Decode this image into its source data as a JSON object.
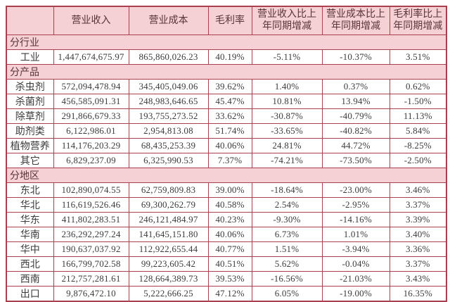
{
  "colors": {
    "header_bg": "#f5d0d4",
    "border": "#a8414d",
    "header_text": "#5a3338",
    "body_text": "#3c3c3c"
  },
  "table": {
    "columns": [
      "",
      "营业收入",
      "营业成本",
      "毛利率",
      "营业收入比上年同期增减",
      "营业成本比上年同期增减",
      "毛利率比上年同期增减"
    ],
    "sections": [
      {
        "label": "分行业",
        "rows": [
          {
            "label": "工业",
            "values": [
              "1,447,674,675.97",
              "865,860,026.23",
              "40.19%",
              "-5.11%",
              "-10.37%",
              "3.51%"
            ]
          }
        ]
      },
      {
        "label": "分产品",
        "rows": [
          {
            "label": "杀虫剂",
            "values": [
              "572,094,478.94",
              "345,405,049.06",
              "39.62%",
              "1.40%",
              "0.37%",
              "0.62%"
            ]
          },
          {
            "label": "杀菌剂",
            "values": [
              "456,585,091.31",
              "248,983,646.65",
              "45.47%",
              "10.81%",
              "13.94%",
              "-1.50%"
            ]
          },
          {
            "label": "除草剂",
            "values": [
              "291,866,679.33",
              "193,755,273.52",
              "33.62%",
              "-30.87%",
              "-40.79%",
              "11.13%"
            ]
          },
          {
            "label": "助剂类",
            "values": [
              "6,122,986.01",
              "2,954,813.08",
              "51.74%",
              "-33.65%",
              "-40.82%",
              "5.84%"
            ]
          },
          {
            "label": "植物营养",
            "values": [
              "114,176,203.29",
              "68,435,253.39",
              "40.06%",
              "24.81%",
              "44.72%",
              "-8.25%"
            ]
          },
          {
            "label": "其它",
            "values": [
              "6,829,237.09",
              "6,325,990.53",
              "7.37%",
              "-74.21%",
              "-73.50%",
              "-2.50%"
            ]
          }
        ]
      },
      {
        "label": "分地区",
        "rows": [
          {
            "label": "东北",
            "values": [
              "102,890,074.55",
              "62,759,809.83",
              "39.00%",
              "-18.64%",
              "-23.00%",
              "3.46%"
            ]
          },
          {
            "label": "华北",
            "values": [
              "116,619,526.46",
              "69,300,262.79",
              "40.58%",
              "2.54%",
              "-2.95%",
              "3.37%"
            ]
          },
          {
            "label": "华东",
            "values": [
              "411,802,283.51",
              "246,121,484.97",
              "40.23%",
              "-9.30%",
              "-14.16%",
              "3.39%"
            ]
          },
          {
            "label": "华南",
            "values": [
              "236,292,297.24",
              "141,645,151.80",
              "40.06%",
              "6.73%",
              "1.01%",
              "3.40%"
            ]
          },
          {
            "label": "华中",
            "values": [
              "190,637,037.92",
              "112,922,655.44",
              "40.77%",
              "1.51%",
              "-3.94%",
              "3.36%"
            ]
          },
          {
            "label": "西北",
            "values": [
              "166,799,702.58",
              "99,223,605.42",
              "40.51%",
              "5.62%",
              "-0.04%",
              "3.37%"
            ]
          },
          {
            "label": "西南",
            "values": [
              "212,757,281.61",
              "128,664,389.73",
              "39.53%",
              "-16.56%",
              "-21.03%",
              "3.43%"
            ]
          },
          {
            "label": "出口",
            "values": [
              "9,876,472.10",
              "5,222,666.25",
              "47.12%",
              "6.05%",
              "-19.00%",
              "16.35%"
            ]
          }
        ]
      }
    ]
  }
}
